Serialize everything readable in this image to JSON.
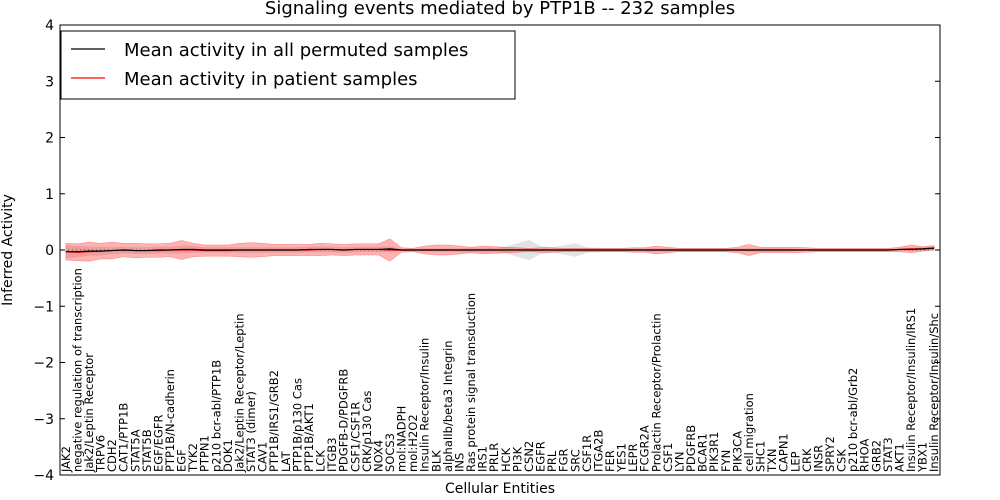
{
  "chart_data": {
    "type": "line",
    "title": "Signaling events mediated by PTP1B -- 232 samples",
    "xlabel": "Cellular Entities",
    "ylabel": "Inferred Activity",
    "ylim": [
      -4,
      4
    ],
    "yticks": [
      "4",
      "3",
      "2",
      "1",
      "0",
      "−1",
      "−2",
      "−3",
      "−4"
    ],
    "yticks_values": [
      4,
      3,
      2,
      1,
      0,
      -1,
      -2,
      -3,
      -4
    ],
    "legend_position": "top-left",
    "categories": [
      "JAK2",
      "negative regulation of transcription",
      "Jak2/Leptin Receptor",
      "TRPV6",
      "CDH2",
      "CAT1/PTP1B",
      "STAT5A",
      "STAT5B",
      "EGF/EGFR",
      "PTP1B/N-cadherin",
      "EGF",
      "TYK2",
      "PTPN1",
      "p210 bcr-abl/PTP1B",
      "DOK1",
      "Jak2/Leptin Receptor/Leptin",
      "STAT3 (dimer)",
      "CAV1",
      "PTP1B/IRS1/GRB2",
      "LAT",
      "PTP1B/p130 Cas",
      "PTP1B/AKT1",
      "LCK",
      "ITGB3",
      "PDGFB-D/PDGFRB",
      "CSF1/CSF1R",
      "CRK/p130 Cas",
      "NOX4",
      "SOCS3",
      "mol:NADPH",
      "mol:H2O2",
      "Insulin Receptor/Insulin",
      "BLK",
      "alphaIIb/beta3 Integrin",
      "INS",
      "Ras protein signal transduction",
      "IRS1",
      "PRLR",
      "HCK",
      "PI3K",
      "CSN2",
      "EGFR",
      "PRL",
      "FGR",
      "SRC",
      "CSF1R",
      "ITGA2B",
      "FER",
      "YES1",
      "LEPR",
      "FCGR2A",
      "Prolactin Receptor/Prolactin",
      "CSF1",
      "LYN",
      "PDGFRB",
      "BCAR1",
      "PIK3R1",
      "FYN",
      "PIK3CA",
      "cell migration",
      "SHC1",
      "TXN",
      "CAPN1",
      "LEP",
      "CRK",
      "INSR",
      "SPRY2",
      "CSK",
      "p210 bcr-abl/Grb2",
      "RHOA",
      "GRB2",
      "STAT3",
      "AKT1",
      "Insulin Receptor/Insulin/IRS1",
      "YBX1",
      "Insulin Receptor/Insulin/Shc"
    ],
    "series": [
      {
        "name": "Mean activity in all permuted samples",
        "color": "#000000",
        "values": [
          -0.03,
          -0.03,
          -0.02,
          -0.02,
          -0.01,
          0.0,
          -0.01,
          -0.01,
          0.0,
          0.0,
          0.01,
          0.01,
          0.0,
          0.0,
          0.0,
          0.0,
          0.0,
          0.0,
          0.0,
          0.0,
          0.0,
          0.01,
          0.01,
          0.01,
          0.0,
          0.01,
          0.01,
          0.01,
          0.02,
          0.0,
          0.0,
          0.0,
          0.0,
          0.0,
          0.0,
          0.0,
          0.0,
          0.0,
          0.0,
          0.0,
          0.0,
          0.0,
          0.0,
          0.0,
          0.0,
          0.0,
          0.0,
          0.0,
          0.0,
          0.0,
          0.0,
          0.0,
          0.0,
          0.0,
          0.0,
          0.0,
          0.0,
          0.0,
          0.0,
          0.0,
          0.0,
          0.0,
          0.0,
          0.0,
          0.0,
          0.0,
          0.0,
          0.0,
          0.0,
          0.0,
          0.0,
          0.0,
          0.01,
          0.01,
          0.02,
          0.03
        ],
        "spread": [
          0.12,
          0.1,
          0.08,
          0.08,
          0.06,
          0.06,
          0.06,
          0.06,
          0.06,
          0.06,
          0.07,
          0.06,
          0.05,
          0.05,
          0.05,
          0.05,
          0.05,
          0.05,
          0.05,
          0.05,
          0.05,
          0.05,
          0.05,
          0.05,
          0.05,
          0.05,
          0.05,
          0.05,
          0.05,
          0.02,
          0.02,
          0.03,
          0.03,
          0.03,
          0.03,
          0.04,
          0.04,
          0.04,
          0.06,
          0.12,
          0.18,
          0.07,
          0.05,
          0.08,
          0.12,
          0.05,
          0.04,
          0.03,
          0.03,
          0.03,
          0.03,
          0.03,
          0.03,
          0.03,
          0.03,
          0.03,
          0.03,
          0.03,
          0.03,
          0.03,
          0.03,
          0.03,
          0.03,
          0.02,
          0.02,
          0.02,
          0.02,
          0.02,
          0.02,
          0.02,
          0.02,
          0.02,
          0.02,
          0.03,
          0.03,
          0.03
        ]
      },
      {
        "name": "Mean activity in patient samples",
        "color": "#ff0000",
        "values": [
          -0.03,
          -0.04,
          -0.03,
          -0.02,
          -0.01,
          0.0,
          -0.01,
          -0.01,
          -0.01,
          0.0,
          0.0,
          0.0,
          -0.01,
          -0.01,
          -0.01,
          0.0,
          0.0,
          0.0,
          0.0,
          0.0,
          0.0,
          0.0,
          0.01,
          0.01,
          0.0,
          0.01,
          0.01,
          0.01,
          0.0,
          0.0,
          0.0,
          0.0,
          0.0,
          0.0,
          0.0,
          0.0,
          0.0,
          0.0,
          0.0,
          0.0,
          0.0,
          0.0,
          0.0,
          0.0,
          0.0,
          0.0,
          0.0,
          0.0,
          0.0,
          0.0,
          0.0,
          0.0,
          0.0,
          0.0,
          0.0,
          0.0,
          0.0,
          0.0,
          0.0,
          0.0,
          0.0,
          0.0,
          0.0,
          0.0,
          0.0,
          0.0,
          0.0,
          0.0,
          0.0,
          0.0,
          0.0,
          0.0,
          0.01,
          0.02,
          0.02,
          0.04
        ],
        "spread": [
          0.15,
          0.15,
          0.17,
          0.14,
          0.15,
          0.12,
          0.13,
          0.12,
          0.12,
          0.12,
          0.17,
          0.12,
          0.1,
          0.1,
          0.1,
          0.12,
          0.13,
          0.12,
          0.1,
          0.1,
          0.1,
          0.1,
          0.11,
          0.1,
          0.1,
          0.1,
          0.1,
          0.1,
          0.2,
          0.04,
          0.03,
          0.07,
          0.09,
          0.09,
          0.07,
          0.05,
          0.07,
          0.06,
          0.05,
          0.04,
          0.03,
          0.04,
          0.04,
          0.03,
          0.03,
          0.03,
          0.03,
          0.03,
          0.03,
          0.04,
          0.04,
          0.07,
          0.05,
          0.03,
          0.03,
          0.03,
          0.03,
          0.03,
          0.05,
          0.1,
          0.05,
          0.05,
          0.05,
          0.05,
          0.04,
          0.03,
          0.03,
          0.03,
          0.03,
          0.03,
          0.03,
          0.03,
          0.04,
          0.07,
          0.04,
          0.04
        ]
      }
    ]
  }
}
